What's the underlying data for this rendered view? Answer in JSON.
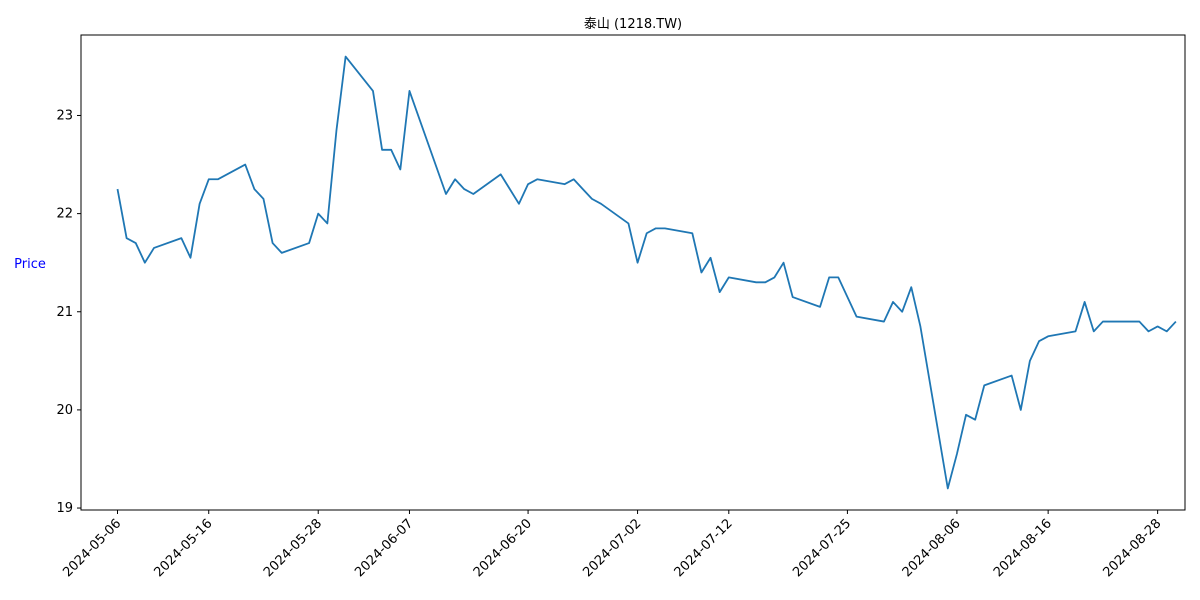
{
  "chart_data": {
    "type": "line",
    "title": "泰山 (1218.TW)",
    "xlabel": "",
    "ylabel": "Price",
    "ylabel_color": "#0000ff",
    "line_color": "#1f77b4",
    "grid": false,
    "legend": "none",
    "x_ticks": [
      "2024-05-06",
      "2024-05-16",
      "2024-05-28",
      "2024-06-07",
      "2024-06-20",
      "2024-07-02",
      "2024-07-12",
      "2024-07-25",
      "2024-08-06",
      "2024-08-16",
      "2024-08-28"
    ],
    "y_ticks": [
      "19",
      "20",
      "21",
      "22",
      "23"
    ],
    "xlim": [
      "2024-05-02",
      "2024-08-31"
    ],
    "ylim": [
      18.98,
      23.82
    ],
    "x": [
      "2024-05-06",
      "2024-05-07",
      "2024-05-08",
      "2024-05-09",
      "2024-05-10",
      "2024-05-13",
      "2024-05-14",
      "2024-05-15",
      "2024-05-16",
      "2024-05-17",
      "2024-05-20",
      "2024-05-21",
      "2024-05-22",
      "2024-05-23",
      "2024-05-24",
      "2024-05-27",
      "2024-05-28",
      "2024-05-29",
      "2024-05-30",
      "2024-05-31",
      "2024-06-03",
      "2024-06-04",
      "2024-06-05",
      "2024-06-06",
      "2024-06-07",
      "2024-06-11",
      "2024-06-12",
      "2024-06-13",
      "2024-06-14",
      "2024-06-17",
      "2024-06-19",
      "2024-06-20",
      "2024-06-21",
      "2024-06-24",
      "2024-06-25",
      "2024-06-26",
      "2024-06-27",
      "2024-06-28",
      "2024-07-01",
      "2024-07-02",
      "2024-07-03",
      "2024-07-04",
      "2024-07-05",
      "2024-07-08",
      "2024-07-09",
      "2024-07-10",
      "2024-07-11",
      "2024-07-12",
      "2024-07-15",
      "2024-07-16",
      "2024-07-17",
      "2024-07-18",
      "2024-07-19",
      "2024-07-22",
      "2024-07-23",
      "2024-07-24",
      "2024-07-26",
      "2024-07-29",
      "2024-07-30",
      "2024-07-31",
      "2024-08-01",
      "2024-08-02",
      "2024-08-05",
      "2024-08-06",
      "2024-08-07",
      "2024-08-08",
      "2024-08-09",
      "2024-08-12",
      "2024-08-13",
      "2024-08-14",
      "2024-08-15",
      "2024-08-16",
      "2024-08-19",
      "2024-08-20",
      "2024-08-21",
      "2024-08-22",
      "2024-08-26",
      "2024-08-27",
      "2024-08-28",
      "2024-08-29",
      "2024-08-30"
    ],
    "series": [
      {
        "values": [
          22.25,
          21.75,
          21.7,
          21.5,
          21.65,
          21.75,
          21.55,
          22.1,
          22.35,
          22.35,
          22.5,
          22.25,
          22.15,
          21.7,
          21.6,
          21.7,
          22.0,
          21.9,
          22.85,
          23.6,
          23.25,
          22.65,
          22.65,
          22.45,
          23.25,
          22.2,
          22.35,
          22.25,
          22.2,
          22.4,
          22.1,
          22.3,
          22.35,
          22.3,
          22.35,
          22.25,
          22.15,
          22.1,
          21.9,
          21.5,
          21.8,
          21.85,
          21.85,
          21.8,
          21.4,
          21.55,
          21.2,
          21.35,
          21.3,
          21.3,
          21.35,
          21.5,
          21.15,
          21.05,
          21.35,
          21.35,
          20.95,
          20.9,
          21.1,
          21.0,
          21.25,
          20.85,
          19.2,
          19.55,
          19.95,
          19.9,
          20.25,
          20.35,
          20.0,
          20.5,
          20.7,
          20.75,
          20.8,
          21.1,
          20.8,
          20.9,
          20.9,
          20.8,
          20.85,
          20.8,
          20.9
        ]
      }
    ]
  }
}
